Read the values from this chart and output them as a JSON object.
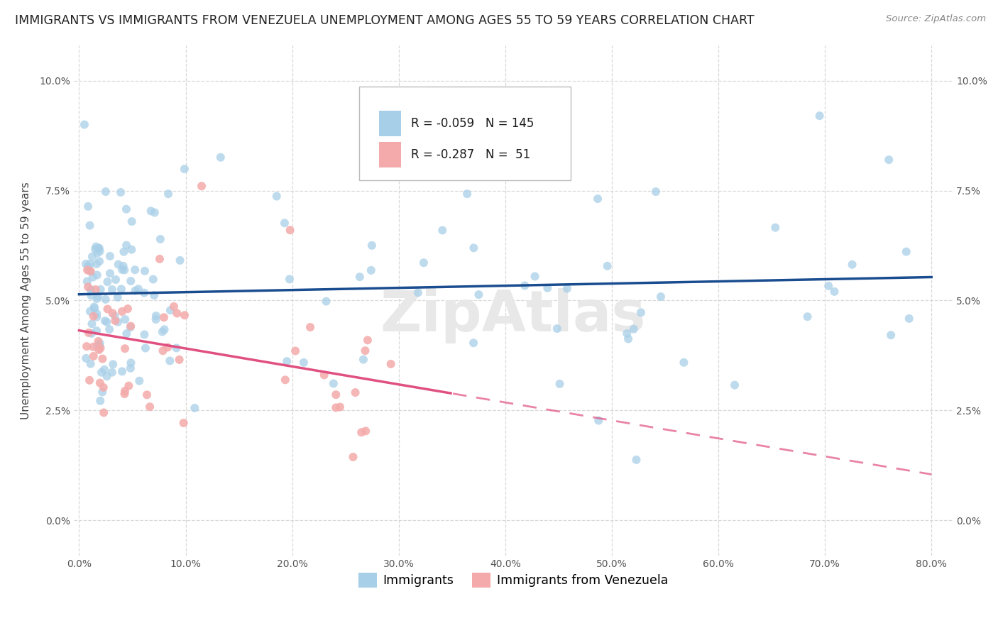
{
  "title": "IMMIGRANTS VS IMMIGRANTS FROM VENEZUELA UNEMPLOYMENT AMONG AGES 55 TO 59 YEARS CORRELATION CHART",
  "source": "Source: ZipAtlas.com",
  "ylabel": "Unemployment Among Ages 55 to 59 years",
  "xlim": [
    -0.005,
    0.82
  ],
  "ylim": [
    -0.008,
    0.108
  ],
  "ytick_vals": [
    0.0,
    0.025,
    0.05,
    0.075,
    0.1
  ],
  "xtick_vals": [
    0.0,
    0.1,
    0.2,
    0.3,
    0.4,
    0.5,
    0.6,
    0.7,
    0.8
  ],
  "legend_R1": "-0.059",
  "legend_N1": "145",
  "legend_R2": "-0.287",
  "legend_N2": "51",
  "color_immigrants": "#a8cfe8",
  "color_venezuela": "#f4aaaa",
  "trendline_color_immigrants": "#1a4d8f",
  "trendline_color_venezuela": "#e05080",
  "background_color": "#ffffff",
  "grid_color": "#d8d8d8",
  "watermark": "ZipAtlas",
  "imm_trendline_start": 0.0523,
  "imm_trendline_end": 0.049,
  "ven_trendline_start": 0.045,
  "ven_trendline_end_x": 0.3,
  "ven_trendline_slope": -0.095
}
